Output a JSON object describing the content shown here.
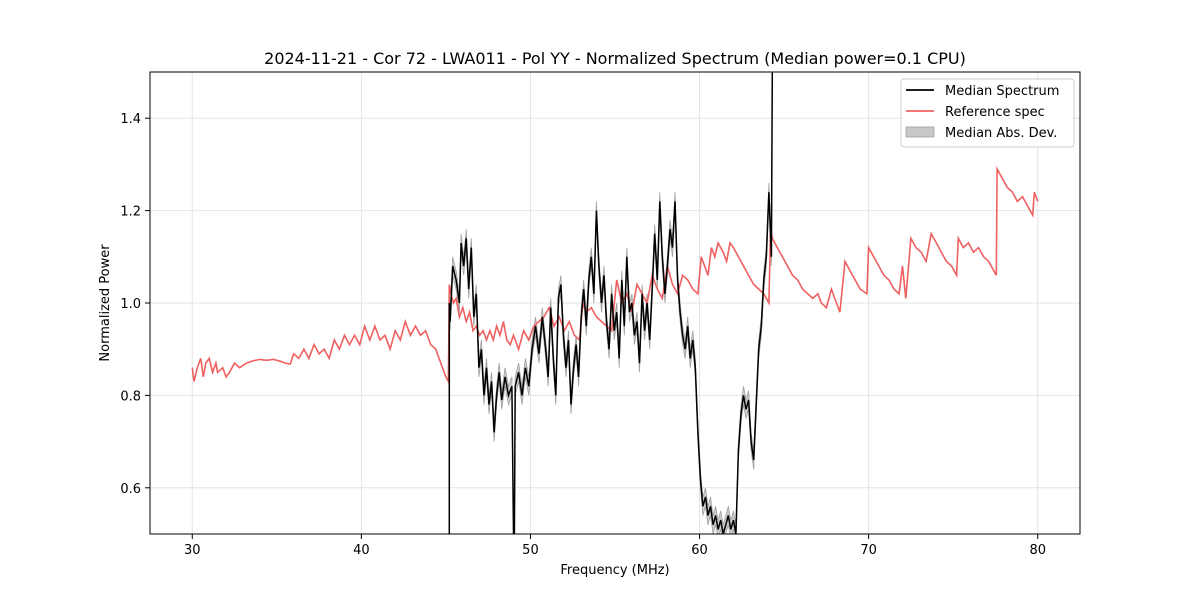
{
  "chart_data": {
    "type": "line",
    "title": "2024-11-21 - Cor 72 - LWA011 - Pol YY - Normalized Spectrum (Median power=0.1 CPU)",
    "xlabel": "Frequency (MHz)",
    "ylabel": "Normalized Power",
    "xlim": [
      27.5,
      82.5
    ],
    "ylim": [
      0.5,
      1.5
    ],
    "xticks": [
      30,
      40,
      50,
      60,
      70,
      80
    ],
    "xtick_labels": [
      "30",
      "40",
      "50",
      "60",
      "70",
      "80"
    ],
    "yticks": [
      0.6,
      0.8,
      1.0,
      1.2,
      1.4
    ],
    "ytick_labels": [
      "0.6",
      "0.8",
      "1.0",
      "1.2",
      "1.4"
    ],
    "grid": true,
    "legend": {
      "position": "top-right",
      "entries": [
        "Median Spectrum",
        "Reference spec",
        "Median Abs. Dev."
      ]
    },
    "colors": {
      "median": "#000000",
      "reference": "#f06060",
      "mad_fill": "#c8c8c8",
      "mad_edge": "#a0a0a0",
      "grid": "#e4e4e4"
    },
    "series": [
      {
        "name": "Median Spectrum",
        "x": [
          45.2,
          45.2,
          45.25,
          45.4,
          45.6,
          45.8,
          45.9,
          46.05,
          46.2,
          46.35,
          46.5,
          46.65,
          46.8,
          46.95,
          47.1,
          47.25,
          47.4,
          47.55,
          47.7,
          47.85,
          48.0,
          48.15,
          48.3,
          48.5,
          48.7,
          48.9,
          49.0,
          49.05,
          49.1,
          49.3,
          49.5,
          49.7,
          49.9,
          50.1,
          50.3,
          50.5,
          50.7,
          50.9,
          51.05,
          51.2,
          51.35,
          51.5,
          51.65,
          51.8,
          51.95,
          52.1,
          52.25,
          52.4,
          52.55,
          52.7,
          52.85,
          53.0,
          53.15,
          53.3,
          53.45,
          53.6,
          53.75,
          53.9,
          54.05,
          54.2,
          54.35,
          54.5,
          54.65,
          54.8,
          54.95,
          55.1,
          55.25,
          55.4,
          55.55,
          55.7,
          55.85,
          56.0,
          56.15,
          56.3,
          56.45,
          56.6,
          56.75,
          56.9,
          57.05,
          57.2,
          57.35,
          57.5,
          57.65,
          57.8,
          57.95,
          58.1,
          58.25,
          58.4,
          58.55,
          58.7,
          58.85,
          59.0,
          59.15,
          59.3,
          59.45,
          59.6,
          59.75,
          59.9,
          60.05,
          60.2,
          60.35,
          60.5,
          60.65,
          60.8,
          60.95,
          61.1,
          61.25,
          61.4,
          61.55,
          61.7,
          61.85,
          62.0,
          62.15,
          62.3,
          62.45,
          62.6,
          62.75,
          62.9,
          63.05,
          63.2,
          63.35,
          63.5,
          63.65,
          63.8,
          63.95,
          64.1,
          64.25,
          64.3
        ],
        "values": [
          0.5,
          1.0,
          0.96,
          1.08,
          1.05,
          1.0,
          1.13,
          1.08,
          1.14,
          1.03,
          1.12,
          0.97,
          1.02,
          0.86,
          0.9,
          0.8,
          0.86,
          0.78,
          0.83,
          0.72,
          0.8,
          0.85,
          0.79,
          0.84,
          0.8,
          0.82,
          0.5,
          0.5,
          0.82,
          0.85,
          0.8,
          0.86,
          0.82,
          0.9,
          0.95,
          0.89,
          0.97,
          0.9,
          0.84,
          0.99,
          0.88,
          0.8,
          1.01,
          1.04,
          0.93,
          0.86,
          0.92,
          0.78,
          0.86,
          0.91,
          0.84,
          0.97,
          1.03,
          0.95,
          1.05,
          1.1,
          1.02,
          1.2,
          1.08,
          1.0,
          1.06,
          0.96,
          0.9,
          1.02,
          0.94,
          0.98,
          0.88,
          1.05,
          0.95,
          1.1,
          0.98,
          1.0,
          0.93,
          0.96,
          0.87,
          1.02,
          0.94,
          1.0,
          0.92,
          1.03,
          1.15,
          1.05,
          1.22,
          1.1,
          1.02,
          1.08,
          1.16,
          1.12,
          1.22,
          1.05,
          0.98,
          0.93,
          0.9,
          0.95,
          0.88,
          0.92,
          0.86,
          0.72,
          0.62,
          0.56,
          0.58,
          0.54,
          0.56,
          0.52,
          0.54,
          0.51,
          0.53,
          0.5,
          0.52,
          0.54,
          0.51,
          0.53,
          0.5,
          0.68,
          0.76,
          0.8,
          0.77,
          0.79,
          0.7,
          0.66,
          0.78,
          0.9,
          0.95,
          1.05,
          1.1,
          1.24,
          1.1,
          1.5
        ]
      },
      {
        "name": "Reference spec",
        "x": [
          30.0,
          30.1,
          30.3,
          30.5,
          30.65,
          30.8,
          31.0,
          31.2,
          31.4,
          31.5,
          31.8,
          32.0,
          32.2,
          32.5,
          32.8,
          33.2,
          33.6,
          34.0,
          34.4,
          34.8,
          35.2,
          35.5,
          35.8,
          36.0,
          36.3,
          36.6,
          36.9,
          37.2,
          37.5,
          37.8,
          38.1,
          38.4,
          38.7,
          39.0,
          39.3,
          39.6,
          39.9,
          40.2,
          40.5,
          40.8,
          41.1,
          41.4,
          41.7,
          42.0,
          42.3,
          42.6,
          42.9,
          43.2,
          43.5,
          43.8,
          44.1,
          44.4,
          44.7,
          45.0,
          45.15,
          45.2,
          45.3,
          45.45,
          45.6,
          45.8,
          46.0,
          46.2,
          46.4,
          46.6,
          46.8,
          47.0,
          47.2,
          47.4,
          47.6,
          47.8,
          48.0,
          48.2,
          48.4,
          48.6,
          48.8,
          49.0,
          49.3,
          49.6,
          49.9,
          50.2,
          50.5,
          50.8,
          51.1,
          51.4,
          51.7,
          52.0,
          52.3,
          52.6,
          52.9,
          53.1,
          53.3,
          53.6,
          53.9,
          54.2,
          54.5,
          54.8,
          55.1,
          55.4,
          55.7,
          56.0,
          56.3,
          56.6,
          56.9,
          57.2,
          57.5,
          57.8,
          58.1,
          58.4,
          58.7,
          59.0,
          59.3,
          59.6,
          59.9,
          60.1,
          60.3,
          60.5,
          60.7,
          60.9,
          61.1,
          61.4,
          61.6,
          61.8,
          62.0,
          62.3,
          62.6,
          62.9,
          63.2,
          63.5,
          63.8,
          64.1,
          64.2,
          64.3,
          64.6,
          64.9,
          65.2,
          65.5,
          65.8,
          66.1,
          66.4,
          66.7,
          67.0,
          67.2,
          67.5,
          67.8,
          68.0,
          68.3,
          68.6,
          68.9,
          69.2,
          69.5,
          69.9,
          70.0,
          70.3,
          70.6,
          70.9,
          71.2,
          71.5,
          71.8,
          72.0,
          72.2,
          72.5,
          72.8,
          73.1,
          73.4,
          73.7,
          74.0,
          74.3,
          74.6,
          74.9,
          75.2,
          75.3,
          75.6,
          75.9,
          76.2,
          76.5,
          76.8,
          77.1,
          77.4,
          77.55,
          77.6,
          77.9,
          78.2,
          78.5,
          78.8,
          79.1,
          79.4,
          79.7,
          79.8,
          80.0
        ],
        "values": [
          0.86,
          0.83,
          0.86,
          0.88,
          0.84,
          0.87,
          0.88,
          0.85,
          0.87,
          0.85,
          0.86,
          0.84,
          0.85,
          0.87,
          0.86,
          0.87,
          0.875,
          0.878,
          0.876,
          0.878,
          0.874,
          0.87,
          0.868,
          0.89,
          0.88,
          0.9,
          0.88,
          0.91,
          0.89,
          0.9,
          0.88,
          0.92,
          0.9,
          0.93,
          0.91,
          0.93,
          0.91,
          0.95,
          0.92,
          0.95,
          0.92,
          0.93,
          0.9,
          0.94,
          0.92,
          0.96,
          0.93,
          0.95,
          0.93,
          0.94,
          0.91,
          0.9,
          0.87,
          0.84,
          0.83,
          1.04,
          1.02,
          1.0,
          1.01,
          0.97,
          0.99,
          0.96,
          0.98,
          0.94,
          0.95,
          0.93,
          0.94,
          0.92,
          0.94,
          0.92,
          0.95,
          0.93,
          0.96,
          0.92,
          0.91,
          0.93,
          0.9,
          0.94,
          0.92,
          0.95,
          0.96,
          0.97,
          0.99,
          0.95,
          0.97,
          0.94,
          0.96,
          0.93,
          0.92,
          1.0,
          0.98,
          0.99,
          0.97,
          0.96,
          0.95,
          0.94,
          1.05,
          1.0,
          1.02,
          0.98,
          1.04,
          1.02,
          1.0,
          1.06,
          1.03,
          1.01,
          1.08,
          1.04,
          1.02,
          1.06,
          1.05,
          1.03,
          1.02,
          1.1,
          1.08,
          1.06,
          1.12,
          1.1,
          1.13,
          1.11,
          1.09,
          1.13,
          1.12,
          1.1,
          1.08,
          1.06,
          1.04,
          1.03,
          1.02,
          1.0,
          1.16,
          1.14,
          1.12,
          1.1,
          1.08,
          1.06,
          1.05,
          1.03,
          1.02,
          1.01,
          1.02,
          1.0,
          0.99,
          1.03,
          1.01,
          0.98,
          1.09,
          1.07,
          1.05,
          1.03,
          1.02,
          1.12,
          1.1,
          1.08,
          1.06,
          1.05,
          1.03,
          1.02,
          1.08,
          1.01,
          1.14,
          1.12,
          1.11,
          1.09,
          1.15,
          1.13,
          1.11,
          1.09,
          1.08,
          1.06,
          1.14,
          1.12,
          1.13,
          1.11,
          1.12,
          1.1,
          1.09,
          1.07,
          1.06,
          1.29,
          1.27,
          1.25,
          1.24,
          1.22,
          1.23,
          1.21,
          1.19,
          1.24,
          1.22
        ]
      }
    ]
  }
}
